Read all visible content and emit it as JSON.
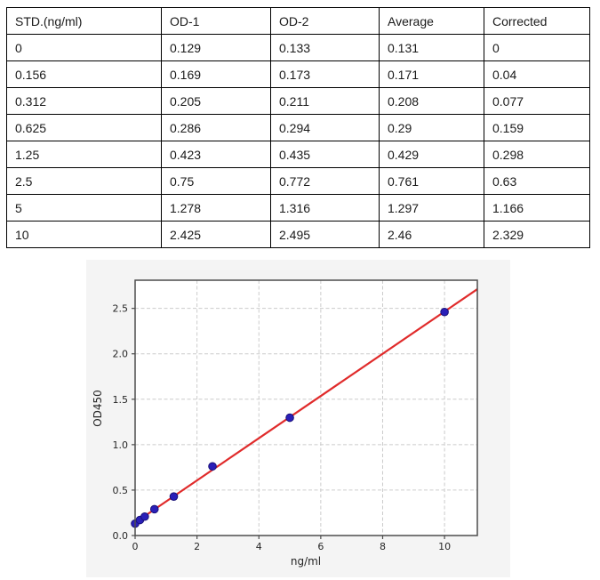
{
  "table": {
    "columns": [
      "STD.(ng/ml)",
      "OD-1",
      "OD-2",
      "Average",
      "Corrected"
    ],
    "rows": [
      [
        "0",
        "0.129",
        "0.133",
        "0.131",
        "0"
      ],
      [
        "0.156",
        "0.169",
        "0.173",
        "0.171",
        "0.04"
      ],
      [
        "0.312",
        "0.205",
        "0.211",
        "0.208",
        "0.077"
      ],
      [
        "0.625",
        "0.286",
        "0.294",
        "0.29",
        "0.159"
      ],
      [
        "1.25",
        "0.423",
        "0.435",
        "0.429",
        "0.298"
      ],
      [
        "2.5",
        "0.75",
        "0.772",
        "0.761",
        "0.63"
      ],
      [
        "5",
        "1.278",
        "1.316",
        "1.297",
        "1.166"
      ],
      [
        "10",
        "2.425",
        "2.495",
        "2.46",
        "2.329"
      ]
    ]
  },
  "chart_data": {
    "type": "scatter",
    "title": "",
    "xlabel": "ng/ml",
    "ylabel": "OD450",
    "points": [
      [
        0,
        0.131
      ],
      [
        0.156,
        0.171
      ],
      [
        0.312,
        0.208
      ],
      [
        0.625,
        0.29
      ],
      [
        1.25,
        0.429
      ],
      [
        2.5,
        0.761
      ],
      [
        5,
        1.297
      ],
      [
        10,
        2.46
      ]
    ],
    "fit_line": {
      "slope": 0.2323,
      "intercept": 0.142
    },
    "xlim": [
      0,
      11.06
    ],
    "ylim": [
      0,
      2.81
    ],
    "xticks": [
      0,
      2,
      4,
      6,
      8,
      10
    ],
    "yticks": [
      0,
      0.5,
      1,
      1.5,
      2,
      2.5
    ],
    "grid": true,
    "legend_position": "none",
    "colors": {
      "point": "#2a1fb8",
      "point_edge": "#191178",
      "line": "#e02b2b",
      "grid": "#cccccc",
      "spine": "#4d4d4d",
      "figure_bg": "#f4f4f4",
      "plot_bg": "#ffffff"
    }
  }
}
